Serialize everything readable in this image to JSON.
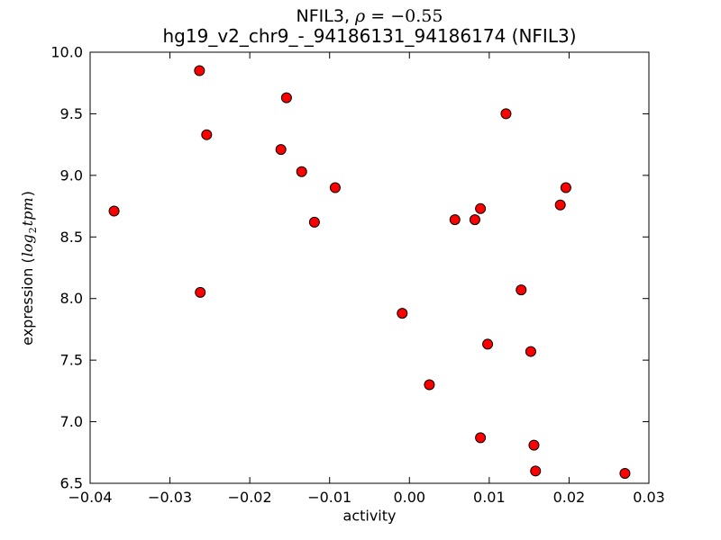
{
  "window": {
    "background": "#ffffff",
    "frame_color": "#000000"
  },
  "title": {
    "line1_gene": "NFIL3, ",
    "line1_rho_symbol": "ρ",
    "line1_rho_value": " = −0.55",
    "line2": "hg19_v2_chr9_-_94186131_94186174 (NFIL3)"
  },
  "axis_labels": {
    "x": "activity",
    "y_prefix": "expression (",
    "y_log": "log",
    "y_sub": "2",
    "y_tpm": "tpm",
    "y_suffix": ")"
  },
  "chart_data": {
    "type": "scatter",
    "title": "NFIL3, ρ = −0.55",
    "subtitle": "hg19_v2_chr9_-_94186131_94186174 (NFIL3)",
    "xlabel": "activity",
    "ylabel": "expression (log2 tpm)",
    "xlim": [
      -0.04,
      0.03
    ],
    "ylim": [
      6.5,
      10.0
    ],
    "grid": false,
    "legend": null,
    "tick_direction": "in",
    "x_ticks": [
      "−0.04",
      "−0.03",
      "−0.02",
      "−0.01",
      "0.00",
      "0.01",
      "0.02",
      "0.03"
    ],
    "y_ticks": [
      "6.5",
      "7.0",
      "7.5",
      "8.0",
      "8.5",
      "9.0",
      "9.5",
      "10.0"
    ],
    "marker": {
      "shape": "circle",
      "fill": "#ff0000",
      "edge": "#000000",
      "radius": 5.5
    },
    "points": [
      [
        -0.037,
        8.71
      ],
      [
        -0.0263,
        9.85
      ],
      [
        -0.0262,
        8.05
      ],
      [
        -0.0254,
        9.33
      ],
      [
        -0.0161,
        9.21
      ],
      [
        -0.0154,
        9.63
      ],
      [
        -0.0135,
        9.03
      ],
      [
        -0.0119,
        8.62
      ],
      [
        -0.0093,
        8.9
      ],
      [
        -0.0009,
        7.88
      ],
      [
        0.0025,
        7.3
      ],
      [
        0.0057,
        8.64
      ],
      [
        0.0082,
        8.64
      ],
      [
        0.0089,
        8.73
      ],
      [
        0.0089,
        6.87
      ],
      [
        0.0098,
        7.63
      ],
      [
        0.0121,
        9.5
      ],
      [
        0.014,
        8.07
      ],
      [
        0.0152,
        7.57
      ],
      [
        0.0156,
        6.81
      ],
      [
        0.0158,
        6.6
      ],
      [
        0.0189,
        8.76
      ],
      [
        0.0196,
        8.9
      ],
      [
        0.027,
        6.58
      ]
    ]
  }
}
